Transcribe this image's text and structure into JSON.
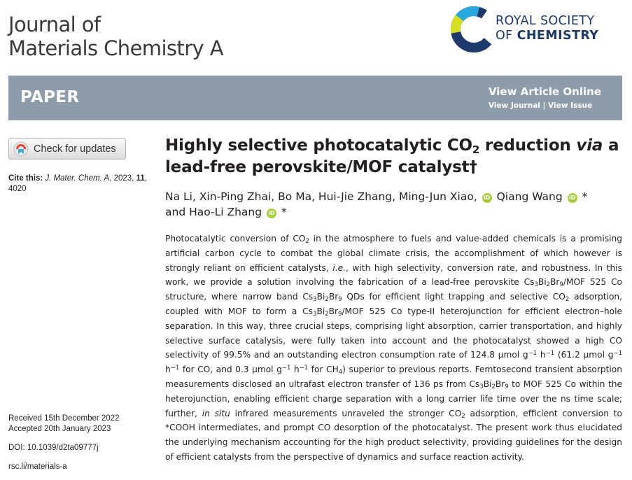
{
  "journal": {
    "line1": "Journal of",
    "line2": "Materials Chemistry A"
  },
  "publisher": {
    "line1": "ROYAL SOCIETY",
    "line2_prefix": "OF ",
    "line2_bold": "CHEMISTRY"
  },
  "banner": {
    "label": "PAPER",
    "view_online": "View Article Online",
    "view_journal": "View Journal",
    "separator": " | ",
    "view_issue": "View Issue"
  },
  "check_updates": "Check for updates",
  "cite": {
    "prefix": "Cite this: ",
    "journal": "J. Mater. Chem. A",
    "year_text": ", 2023, ",
    "volume": "11",
    "pages_sep": ",",
    "pages": "4020"
  },
  "dates": {
    "received": "Received 15th December 2022",
    "accepted": "Accepted 20th January 2023"
  },
  "doi": "DOI: 10.1039/d2ta09777j",
  "rsc_link": "rsc.li/materials-a",
  "title": {
    "part1": "Highly selective photocatalytic CO",
    "sub": "2",
    "part2": " reduction ",
    "via": "via",
    "part3": " a lead-free perovskite/MOF catalyst†"
  },
  "authors": {
    "a1": "Na Li, Xin-Ping Zhai, Bo Ma, Hui-Jie Zhang, Ming-Jun Xiao,",
    "a2": " Qiang Wang",
    "star1": "*",
    "a3": " and Hao-Li Zhang",
    "star2": "*",
    "orcid_label": "iD"
  },
  "abstract": {
    "s1": "Photocatalytic conversion of CO",
    "s2": " in the atmosphere to fuels and value-added chemicals is a promising artificial carbon cycle to combat the global climate crisis, the accomplishment of which however is strongly reliant on efficient catalysts, ",
    "ie": "i.e.",
    "s3": ", with high selectivity, conversion rate, and robustness. In this work, we provide a solution involving the fabrication of a lead-free perovskite Cs",
    "s4": "Bi",
    "s5": "Br",
    "s6": "/MOF 525 Co structure, where narrow band Cs",
    "s7": "Bi",
    "s8": "Br",
    "s9": " QDs for efficient light trapping and selective CO",
    "s10": " adsorption, coupled with MOF to form a Cs",
    "s11": "Bi",
    "s12": "Br",
    "s13": "/MOF 525 Co type-II heterojunction for efficient electron–hole separation. In this way, three crucial steps, comprising light absorption, carrier transportation, and highly selective surface catalysis, were fully taken into account and the photocatalyst showed a high CO selectivity of 99.5% and an outstanding electron consumption rate of 124.8 μmol g",
    "s14": " h",
    "s15": " (61.2 μmol g",
    "s16": " h",
    "s17": " for CO, and 0.3 μmol g",
    "s18": " h",
    "s19": " for CH",
    "s20": ") superior to previous reports. Femtosecond transient absorption measurements disclosed an ultrafast electron transfer of 136 ps from Cs",
    "s21": "Bi",
    "s22": "Br",
    "s23": " to MOF 525 Co within the heterojunction, enabling efficient charge separation with a long carrier life time over the ns time scale; further, ",
    "insitu": "in situ",
    "s24": " infrared measurements unraveled the stronger CO",
    "s25": " adsorption, efficient conversion to *COOH intermediates, and prompt CO desorption of the photocatalyst. The present work thus elucidated the underlying mechanism accounting for the high product selectivity, providing guidelines for the design of efficient catalysts from the perspective of dynamics and surface reaction activity.",
    "sub2": "2",
    "sub3": "3",
    "sub9": "9",
    "sub4": "4",
    "supm1": "−1"
  },
  "colors": {
    "banner": "#8e9bab",
    "rsc_navy": "#1d3a6b",
    "orcid": "#a6ce39"
  },
  "icons": {
    "crossmark": "crossmark-icon",
    "orcid": "orcid-icon",
    "rsc": "rsc-logo-mark"
  }
}
